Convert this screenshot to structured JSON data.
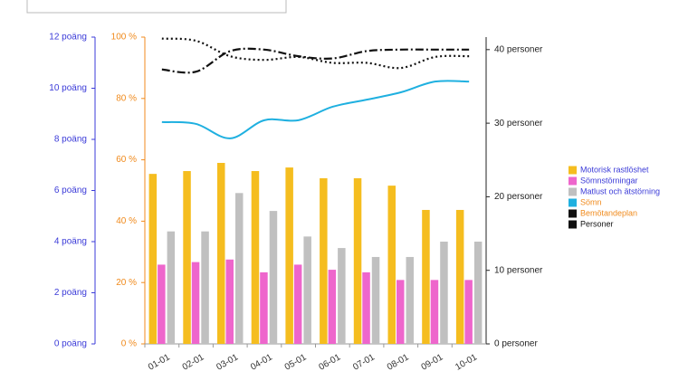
{
  "chart_data": {
    "type": "bar",
    "categories": [
      "01-01",
      "02-01",
      "03-01",
      "04-01",
      "05-01",
      "06-01",
      "07-01",
      "08-01",
      "09-01",
      "10-01"
    ],
    "series": [
      {
        "name": "Motorisk rastlöshet",
        "type": "bar",
        "axis": "y",
        "color": "#f5bd1f",
        "label_color": "#3b3bd8",
        "values": [
          6.65,
          6.76,
          7.08,
          6.76,
          6.9,
          6.48,
          6.48,
          6.19,
          5.24,
          5.24
        ]
      },
      {
        "name": "Sömnstörningar",
        "type": "bar",
        "axis": "y",
        "color": "#ee66cc",
        "label_color": "#3b3bd8",
        "values": [
          3.1,
          3.2,
          3.3,
          2.8,
          3.1,
          2.9,
          2.8,
          2.5,
          2.5,
          2.5
        ]
      },
      {
        "name": "Matlust och ätstörning",
        "type": "bar",
        "axis": "y",
        "color": "#c0c0c0",
        "label_color": "#3b3bd8",
        "values": [
          4.4,
          4.4,
          5.9,
          5.2,
          4.2,
          3.75,
          3.4,
          3.4,
          4.0,
          4.0
        ]
      },
      {
        "name": "Sömn",
        "type": "line",
        "axis": "y3",
        "color": "#1fb0e0",
        "label_color": "#f08a1c",
        "dash": "solid",
        "values": [
          72.3,
          71.7,
          67,
          72.9,
          72.9,
          77.3,
          79.6,
          82,
          85.5,
          85.5
        ]
      },
      {
        "name": "Bemötandeplan",
        "type": "line",
        "axis": "y2",
        "color": "#111111",
        "label_color": "#f08a1c",
        "dash": "dotted",
        "values": [
          41.5,
          41.2,
          39.1,
          38.6,
          39.0,
          38.2,
          38.2,
          37.5,
          39.0,
          39.1
        ]
      },
      {
        "name": "Personer",
        "type": "line",
        "axis": "y2",
        "color": "#111111",
        "label_color": "#111111",
        "dash": "dashdot",
        "values": [
          37.3,
          37.0,
          39.8,
          40,
          39.1,
          38.8,
          39.8,
          40,
          40,
          40
        ]
      }
    ],
    "ylim": [
      0,
      12
    ],
    "yticks": [
      {
        "value": 0,
        "label": "0 poäng"
      },
      {
        "value": 2,
        "label": "2 poäng"
      },
      {
        "value": 4,
        "label": "4 poäng"
      },
      {
        "value": 6,
        "label": "6 poäng"
      },
      {
        "value": 8,
        "label": "8 poäng"
      },
      {
        "value": 10,
        "label": "10 poäng"
      },
      {
        "value": 12,
        "label": "12 poäng"
      }
    ],
    "y3lim": [
      0,
      100
    ],
    "y3ticks": [
      {
        "value": 0,
        "label": "0 %"
      },
      {
        "value": 20,
        "label": "20 %"
      },
      {
        "value": 40,
        "label": "40 %"
      },
      {
        "value": 60,
        "label": "60 %"
      },
      {
        "value": 80,
        "label": "80 %"
      },
      {
        "value": 100,
        "label": "100 %"
      }
    ],
    "y2lim": [
      0,
      41.7
    ],
    "y2ticks": [
      {
        "value": 0,
        "label": "0 personer"
      },
      {
        "value": 10,
        "label": "10 personer"
      },
      {
        "value": 20,
        "label": "20 personer"
      },
      {
        "value": 30,
        "label": "30 personer"
      },
      {
        "value": 40,
        "label": "40 personer"
      }
    ],
    "legend": "right"
  }
}
